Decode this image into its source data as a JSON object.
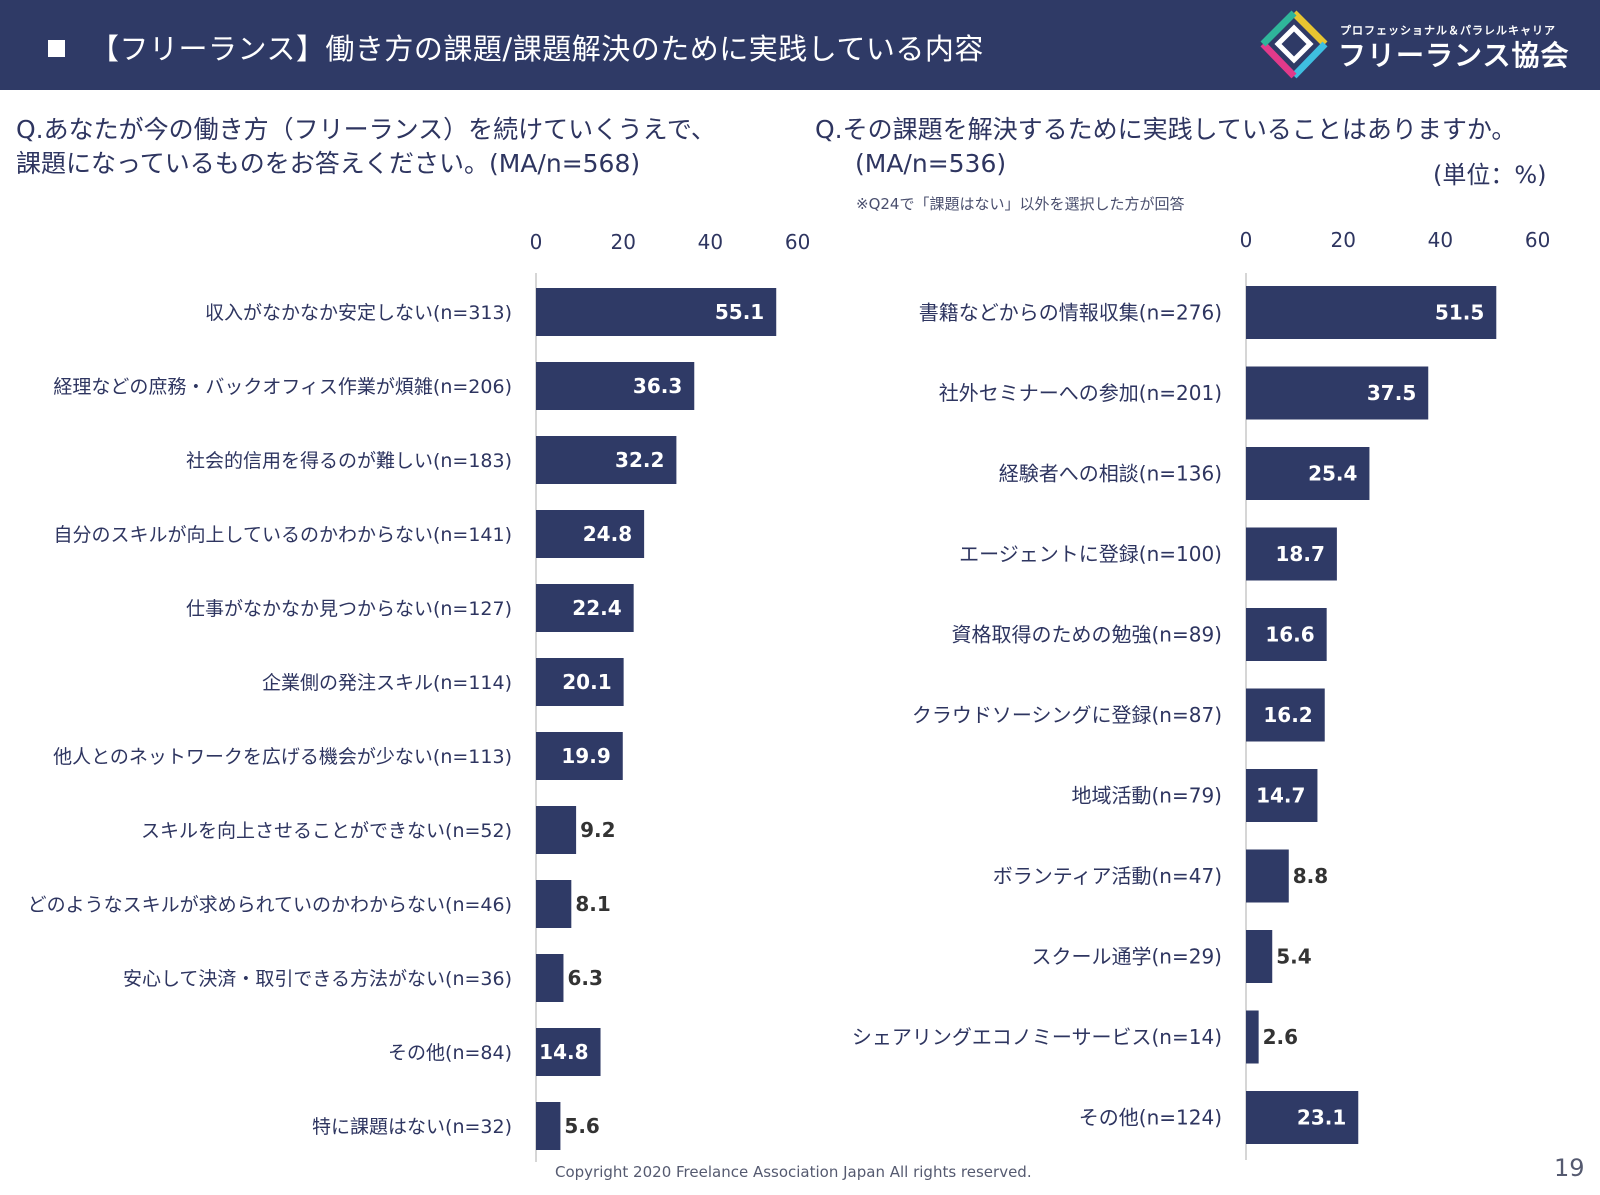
{
  "header": {
    "title": "【フリーランス】働き方の課題/課題解決のために実践している内容",
    "logo_sub": "プロフェッショナル＆パラレルキャリア",
    "logo_main": "フリーランス協会"
  },
  "questions": {
    "left_line1": "Q.あなたが今の働き方（フリーランス）を続けていくうえで、",
    "left_line2": "課題になっているものをお答えください。(MA/n=568)",
    "right_line1": "Q.その課題を解決するために実践していることはありますか。",
    "right_line2": "(MA/n=536)",
    "unit": "(単位：%)",
    "note": "※Q24で「課題はない」以外を選択した方が回答"
  },
  "chart_data": [
    {
      "type": "bar",
      "orientation": "horizontal",
      "categories": [
        "収入がなかなか安定しない(n=313)",
        "経理などの庶務・バックオフィス作業が煩雑(n=206)",
        "社会的信用を得るのが難しい(n=183)",
        "自分のスキルが向上しているのかわからない(n=141)",
        "仕事がなかなか見つからない(n=127)",
        "企業側の発注スキル(n=114)",
        "他人とのネットワークを広げる機会が少ない(n=113)",
        "スキルを向上させることができない(n=52)",
        "どのようなスキルが求められていのかわからない(n=46)",
        "安心して決済・取引できる方法がない(n=36)",
        "その他(n=84)",
        "特に課題はない(n=32)"
      ],
      "values": [
        55.1,
        36.3,
        32.2,
        24.8,
        22.4,
        20.1,
        19.9,
        9.2,
        8.1,
        6.3,
        14.8,
        5.6
      ],
      "value_labels": [
        "55.1",
        "36.3",
        "32.2",
        "24.8",
        "22.4",
        "20.1",
        "19.9",
        "9.2",
        "8.1",
        "6.3",
        "14.8",
        "5.6"
      ],
      "xlim": [
        0,
        60
      ],
      "ticks": [
        "0",
        "20",
        "40",
        "60"
      ],
      "tick_values": [
        0,
        20,
        40,
        60
      ],
      "bar_color": "#2f3a66"
    },
    {
      "type": "bar",
      "orientation": "horizontal",
      "categories": [
        "書籍などからの情報収集(n=276)",
        "社外セミナーへの参加(n=201)",
        "経験者への相談(n=136)",
        "エージェントに登録(n=100)",
        "資格取得のための勉強(n=89)",
        "クラウドソーシングに登録(n=87)",
        "地域活動(n=79)",
        "ボランティア活動(n=47)",
        "スクール通学(n=29)",
        "シェアリングエコノミーサービス(n=14)",
        "その他(n=124)"
      ],
      "values": [
        51.5,
        37.5,
        25.4,
        18.7,
        16.6,
        16.2,
        14.7,
        8.8,
        5.4,
        2.6,
        23.1
      ],
      "value_labels": [
        "51.5",
        "37.5",
        "25.4",
        "18.7",
        "16.6",
        "16.2",
        "14.7",
        "8.8",
        "5.4",
        "2.6",
        "23.1"
      ],
      "xlim": [
        0,
        60
      ],
      "ticks": [
        "0",
        "20",
        "40",
        "60"
      ],
      "tick_values": [
        0,
        20,
        40,
        60
      ],
      "bar_color": "#2f3a66"
    }
  ],
  "footer": {
    "copyright": "Copyright 2020 Freelance Association Japan  All rights reserved.",
    "page": "19"
  }
}
